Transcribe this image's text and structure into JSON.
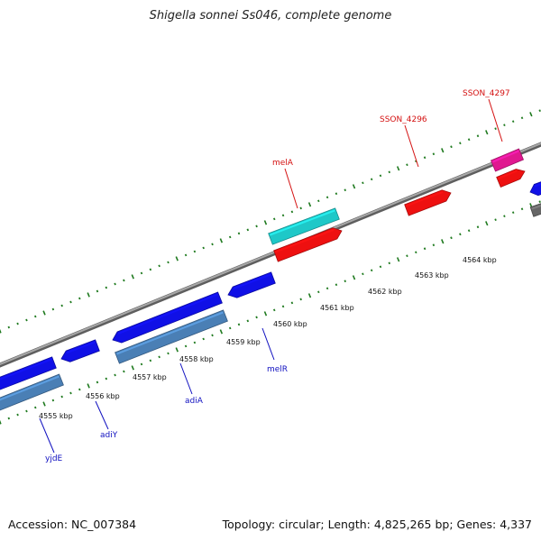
{
  "title": "Shigella sonnei Ss046, complete genome",
  "footer": {
    "accession": "Accession: NC_007384",
    "summary": "Topology: circular; Length: 4,825,265 bp; Genes: 4,337"
  },
  "colors": {
    "backbone": "#8a8a8a",
    "tick": "#1f7a1f",
    "blue_gene": "#1010e6",
    "steel_gene": "#4a7fb5",
    "cyan_gene": "#1ec8c8",
    "red_gene": "#ee1010",
    "magenta_gene": "#e01890",
    "gray_gene": "#666666",
    "blue_label": "#1010c0",
    "red_label": "#d41010"
  },
  "tick_labels": [
    "4555 kbp",
    "4556 kbp",
    "4557 kbp",
    "4558 kbp",
    "4559 kbp",
    "4560 kbp",
    "4561 kbp",
    "4562 kbp",
    "4563 kbp",
    "4564 kbp"
  ],
  "gene_labels": [
    {
      "text": "yjdE",
      "color": "blue"
    },
    {
      "text": "adiY",
      "color": "blue"
    },
    {
      "text": "adiA",
      "color": "blue"
    },
    {
      "text": "melR",
      "color": "blue"
    },
    {
      "text": "melA",
      "color": "red"
    },
    {
      "text": "SSON_4296",
      "color": "red"
    },
    {
      "text": "SSON_4297",
      "color": "red"
    }
  ]
}
